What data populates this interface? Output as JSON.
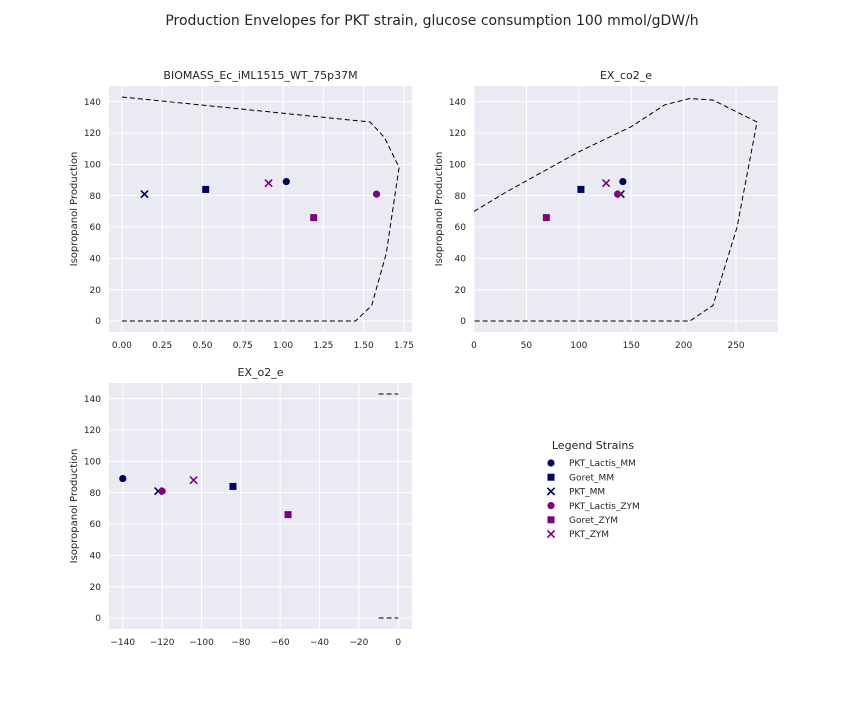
{
  "figure": {
    "title": "Production Envelopes for PKT strain, glucose consumption 100 mmol/gDW/h"
  },
  "colors": {
    "mm": "#000066",
    "zym": "#800080",
    "panel_bg": "#EAEAF2",
    "grid": "#ffffff",
    "envelope": "#000000"
  },
  "legend": {
    "title": "Legend Strains",
    "items": [
      {
        "label": "PKT_Lactis_MM",
        "marker": "circle",
        "color": "#000066"
      },
      {
        "label": "Goret_MM",
        "marker": "square",
        "color": "#000066"
      },
      {
        "label": "PKT_MM",
        "marker": "x",
        "color": "#000066"
      },
      {
        "label": "PKT_Lactis_ZYM",
        "marker": "circle",
        "color": "#800080"
      },
      {
        "label": "Goret_ZYM",
        "marker": "square",
        "color": "#800080"
      },
      {
        "label": "PKT_ZYM",
        "marker": "x",
        "color": "#800080"
      }
    ]
  },
  "chart_data": [
    {
      "type": "scatter",
      "title": "BIOMASS_Ec_iML1515_WT_75p37M",
      "xlabel": "",
      "ylabel": "Isopropanol Production",
      "xlim": [
        -0.08,
        1.8
      ],
      "ylim": [
        -7,
        150
      ],
      "xticks": [
        0.0,
        0.25,
        0.5,
        0.75,
        1.0,
        1.25,
        1.5,
        1.75
      ],
      "xticklabels": [
        "0.00",
        "0.25",
        "0.50",
        "0.75",
        "1.00",
        "1.25",
        "1.50",
        "1.75"
      ],
      "yticks": [
        0,
        20,
        40,
        60,
        80,
        100,
        120,
        140
      ],
      "yticklabels": [
        "0",
        "20",
        "40",
        "60",
        "80",
        "100",
        "120",
        "140"
      ],
      "grid": true,
      "envelope": [
        [
          [
            0.0,
            143
          ],
          [
            1.54,
            127
          ],
          [
            1.63,
            117
          ],
          [
            1.72,
            98
          ],
          [
            1.64,
            43
          ],
          [
            1.55,
            10
          ],
          [
            1.45,
            0
          ],
          [
            0.0,
            0
          ]
        ]
      ],
      "points": [
        {
          "strain": "PKT_Lactis_MM",
          "x": 1.02,
          "y": 89
        },
        {
          "strain": "Goret_MM",
          "x": 0.52,
          "y": 84
        },
        {
          "strain": "PKT_MM",
          "x": 0.14,
          "y": 81
        },
        {
          "strain": "PKT_Lactis_ZYM",
          "x": 1.58,
          "y": 81
        },
        {
          "strain": "Goret_ZYM",
          "x": 1.19,
          "y": 66
        },
        {
          "strain": "PKT_ZYM",
          "x": 0.91,
          "y": 88
        }
      ]
    },
    {
      "type": "scatter",
      "title": "EX_co2_e",
      "xlabel": "",
      "ylabel": "Isopropanol Production",
      "xlim": [
        0,
        290
      ],
      "ylim": [
        -7,
        150
      ],
      "xticks": [
        0,
        50,
        100,
        150,
        200,
        250
      ],
      "xticklabels": [
        "0",
        "50",
        "100",
        "150",
        "200",
        "250"
      ],
      "yticks": [
        0,
        20,
        40,
        60,
        80,
        100,
        120,
        140
      ],
      "yticklabels": [
        "0",
        "20",
        "40",
        "60",
        "80",
        "100",
        "120",
        "140"
      ],
      "grid": true,
      "envelope": [
        [
          [
            0,
            70
          ],
          [
            30,
            82
          ],
          [
            100,
            108
          ],
          [
            150,
            124
          ],
          [
            182,
            138
          ],
          [
            206,
            142
          ],
          [
            228,
            141
          ],
          [
            270,
            127
          ],
          [
            251,
            60
          ],
          [
            228,
            10
          ],
          [
            206,
            0
          ],
          [
            0,
            0
          ]
        ]
      ],
      "points": [
        {
          "strain": "PKT_Lactis_MM",
          "x": 142,
          "y": 89
        },
        {
          "strain": "Goret_MM",
          "x": 102,
          "y": 84
        },
        {
          "strain": "PKT_MM",
          "x": 140,
          "y": 81
        },
        {
          "strain": "PKT_Lactis_ZYM",
          "x": 137,
          "y": 81
        },
        {
          "strain": "Goret_ZYM",
          "x": 69,
          "y": 66
        },
        {
          "strain": "PKT_ZYM",
          "x": 126,
          "y": 88
        }
      ]
    },
    {
      "type": "scatter",
      "title": "EX_o2_e",
      "xlabel": "",
      "ylabel": "Isopropanol Production",
      "xlim": [
        -147,
        7
      ],
      "ylim": [
        -7,
        150
      ],
      "xticks": [
        -140,
        -120,
        -100,
        -80,
        -60,
        -40,
        -20,
        0
      ],
      "xticklabels": [
        "−140",
        "−120",
        "−100",
        "−80",
        "−60",
        "−40",
        "−20",
        "0"
      ],
      "yticks": [
        0,
        20,
        40,
        60,
        80,
        100,
        120,
        140
      ],
      "yticklabels": [
        "0",
        "20",
        "40",
        "60",
        "80",
        "100",
        "120",
        "140"
      ],
      "grid": true,
      "envelope": [
        [
          [
            -10,
            143
          ],
          [
            0,
            143
          ]
        ],
        [
          [
            -10,
            0
          ],
          [
            0,
            0
          ]
        ]
      ],
      "points": [
        {
          "strain": "PKT_Lactis_MM",
          "x": -140,
          "y": 89
        },
        {
          "strain": "Goret_MM",
          "x": -84,
          "y": 84
        },
        {
          "strain": "PKT_MM",
          "x": -122,
          "y": 81
        },
        {
          "strain": "PKT_Lactis_ZYM",
          "x": -120,
          "y": 81
        },
        {
          "strain": "Goret_ZYM",
          "x": -56,
          "y": 66
        },
        {
          "strain": "PKT_ZYM",
          "x": -104,
          "y": 88
        }
      ]
    }
  ]
}
